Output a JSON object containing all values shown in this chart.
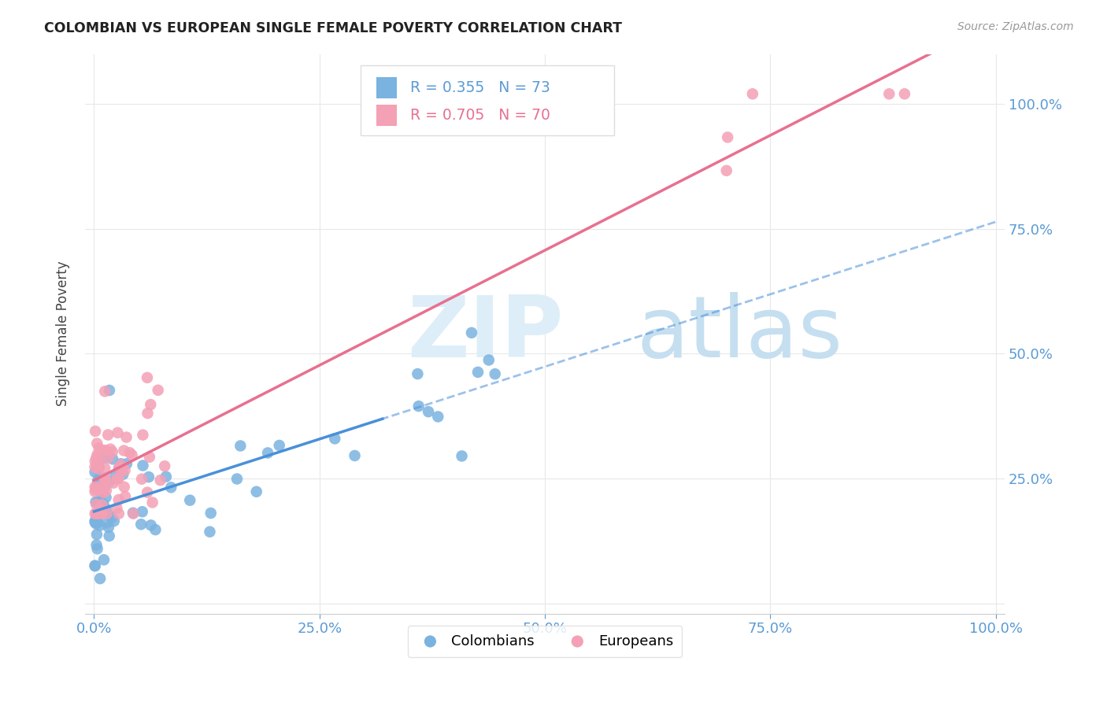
{
  "title": "COLOMBIAN VS EUROPEAN SINGLE FEMALE POVERTY CORRELATION CHART",
  "source": "Source: ZipAtlas.com",
  "ylabel": "Single Female Poverty",
  "watermark_zip": "ZIP",
  "watermark_atlas": "atlas",
  "legend_col_R": "0.355",
  "legend_col_N": "73",
  "legend_eur_R": "0.705",
  "legend_eur_N": "70",
  "colombian_color": "#7ab3e0",
  "european_color": "#f4a0b5",
  "colombian_line_color": "#4a90d9",
  "european_line_color": "#e87090",
  "axis_label_color": "#5b9bd5",
  "grid_color": "#e8e8e8",
  "background_color": "#ffffff",
  "title_color": "#222222",
  "source_color": "#999999",
  "ylabel_color": "#444444"
}
